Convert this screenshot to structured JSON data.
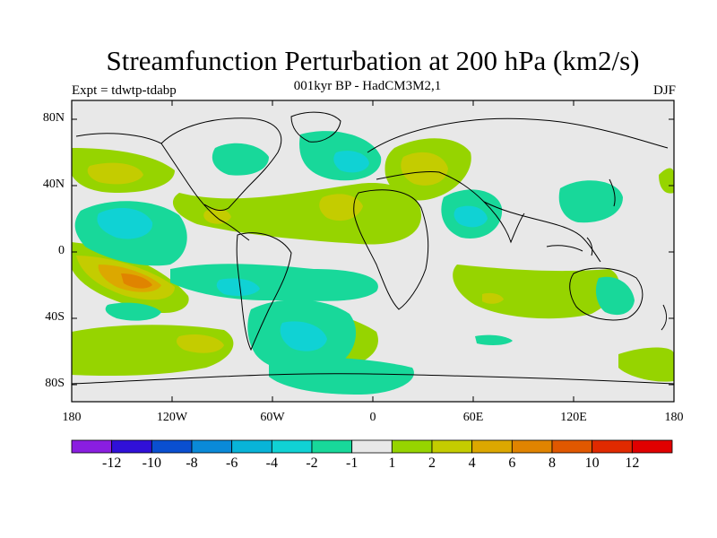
{
  "title": "Streamfunction Perturbation at 200 hPa (km2/s)",
  "subtitle": "001kyr BP - HadCM3M2,1",
  "expt": "Expt = tdwtp-tdabp",
  "season": "DJF",
  "lat_labels": [
    "80N",
    "40N",
    "0",
    "40S",
    "80S"
  ],
  "lon_labels": [
    "180",
    "120W",
    "60W",
    "0",
    "60E",
    "120E",
    "180"
  ],
  "colorbar": {
    "labels": [
      "-12",
      "-10",
      "-8",
      "-6",
      "-4",
      "-2",
      "-1",
      "1",
      "2",
      "4",
      "6",
      "8",
      "10",
      "12"
    ],
    "colors": [
      "#8a1ee0",
      "#3010d8",
      "#0a4fd0",
      "#0a8ad8",
      "#08b4d8",
      "#10d2d4",
      "#18d89a",
      "#e8e8e8",
      "#96d400",
      "#c4cc00",
      "#dca800",
      "#e08400",
      "#e05800",
      "#e02a00",
      "#e00000"
    ]
  },
  "colors": {
    "neutral": "#e8e8e8",
    "cyan_light": "#18d89a",
    "cyan": "#10d2d4",
    "cyan_dark": "#08b4d8",
    "green": "#96d400",
    "yellow": "#c4cc00",
    "orange": "#dca800",
    "orange_dark": "#e08400"
  }
}
